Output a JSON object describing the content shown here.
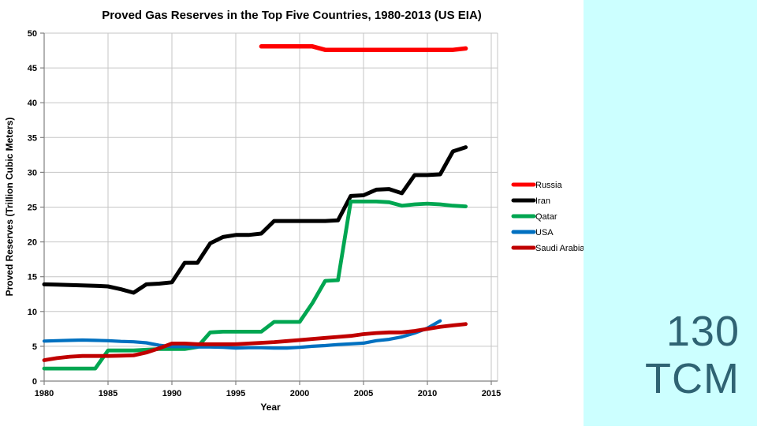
{
  "side_panel": {
    "value": "130",
    "unit": "TCM",
    "bg_color": "#CCFFFF",
    "text_color": "#2F6373"
  },
  "chart_data": {
    "type": "line",
    "title": "Proved Gas Reserves in the Top Five Countries, 1980-2013 (US EIA)",
    "xlabel": "Year",
    "ylabel": "Proved Reserves (Trillion Cubic Meters)",
    "xlim": [
      1980,
      2015
    ],
    "ylim": [
      0,
      50
    ],
    "x_ticks": [
      1980,
      1985,
      1990,
      1995,
      2000,
      2005,
      2010,
      2015
    ],
    "y_ticks": [
      0,
      5,
      10,
      15,
      20,
      25,
      30,
      35,
      40,
      45,
      50
    ],
    "grid": true,
    "legend_position": "right",
    "grid_color": "#C6C6C6",
    "axis_color": "#808080",
    "series": [
      {
        "name": "Russia",
        "color": "#FF0000",
        "x_start": 1997,
        "values": [
          48.1,
          48.1,
          48.1,
          48.1,
          48.1,
          47.6,
          47.6,
          47.6,
          47.6,
          47.6,
          47.6,
          47.6,
          47.6,
          47.6,
          47.6,
          47.6,
          47.8
        ]
      },
      {
        "name": "Iran",
        "color": "#000000",
        "x_start": 1980,
        "values": [
          13.9,
          13.85,
          13.8,
          13.75,
          13.7,
          13.6,
          13.2,
          12.7,
          13.9,
          14.0,
          14.2,
          17.0,
          17.0,
          19.8,
          20.7,
          21.0,
          21.0,
          21.2,
          23.0,
          23.0,
          23.0,
          23.0,
          23.0,
          23.1,
          26.6,
          26.7,
          27.5,
          27.6,
          27.0,
          29.6,
          29.6,
          29.7,
          33.0,
          33.6
        ]
      },
      {
        "name": "Qatar",
        "color": "#00A651",
        "x_start": 1980,
        "values": [
          1.8,
          1.8,
          1.8,
          1.8,
          1.8,
          4.4,
          4.4,
          4.4,
          4.5,
          4.6,
          4.6,
          4.6,
          4.9,
          7.0,
          7.1,
          7.1,
          7.1,
          7.1,
          8.5,
          8.5,
          8.5,
          11.2,
          14.4,
          14.5,
          25.8,
          25.8,
          25.8,
          25.7,
          25.2,
          25.4,
          25.5,
          25.4,
          25.2,
          25.1
        ]
      },
      {
        "name": "USA",
        "color": "#0070C0",
        "x_start": 1980,
        "values": [
          5.75,
          5.8,
          5.85,
          5.9,
          5.85,
          5.8,
          5.7,
          5.65,
          5.5,
          5.15,
          4.95,
          4.95,
          4.9,
          4.9,
          4.85,
          4.75,
          4.8,
          4.8,
          4.75,
          4.75,
          4.85,
          5.0,
          5.1,
          5.25,
          5.35,
          5.45,
          5.8,
          6.0,
          6.35,
          6.9,
          7.6,
          8.65
        ]
      },
      {
        "name": "Saudi Arabia",
        "color": "#C00000",
        "x_start": 1980,
        "values": [
          3.0,
          3.3,
          3.5,
          3.6,
          3.6,
          3.6,
          3.65,
          3.7,
          4.1,
          4.7,
          5.4,
          5.4,
          5.3,
          5.3,
          5.3,
          5.3,
          5.4,
          5.5,
          5.6,
          5.75,
          5.9,
          6.05,
          6.2,
          6.35,
          6.5,
          6.75,
          6.9,
          7.0,
          7.0,
          7.2,
          7.5,
          7.8,
          8.0,
          8.2
        ]
      }
    ]
  }
}
